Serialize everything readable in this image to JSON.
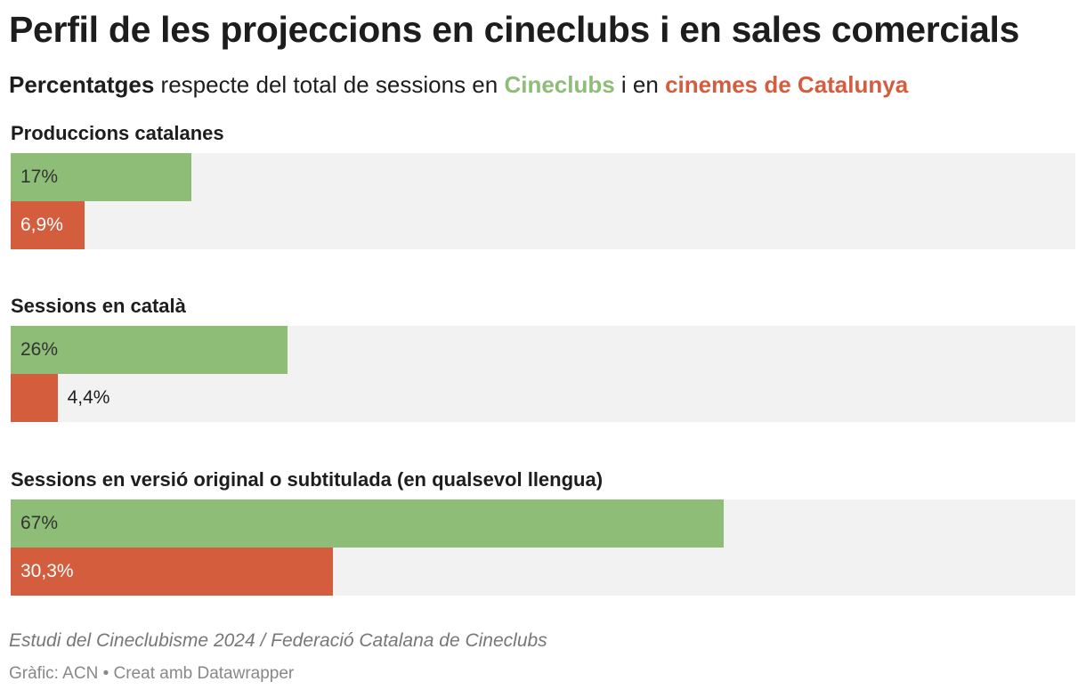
{
  "title": "Perfil de les projeccions en cineclubs i en sales comercials",
  "subtitle": {
    "bold": "Percentatges",
    "mid": " respecte del total de sessions en ",
    "green": "Cineclubs",
    "mid2": " i en ",
    "red": "cinemes de Catalunya"
  },
  "colors": {
    "cineclubs": "#8ebd78",
    "cinemes": "#d45d3e",
    "track": "#f2f2f2"
  },
  "chart_data": {
    "type": "bar",
    "orientation": "horizontal",
    "xlim": [
      0,
      100
    ],
    "categories": [
      "Produccions catalanes",
      "Sessions en català",
      "Sessions en versió original o subtitulada (en qualsevol llengua)"
    ],
    "series": [
      {
        "name": "Cineclubs",
        "values": [
          17,
          26,
          67
        ],
        "labels": [
          "17%",
          "26%",
          "67%"
        ]
      },
      {
        "name": "cinemes de Catalunya",
        "values": [
          6.9,
          4.4,
          30.3
        ],
        "labels": [
          "6,9%",
          "4,4%",
          "30,3%"
        ]
      }
    ]
  },
  "source": "Estudi del Cineclubisme 2024 / Federació Catalana de Cineclubs",
  "credit": "Gràfic: ACN • Creat amb Datawrapper"
}
